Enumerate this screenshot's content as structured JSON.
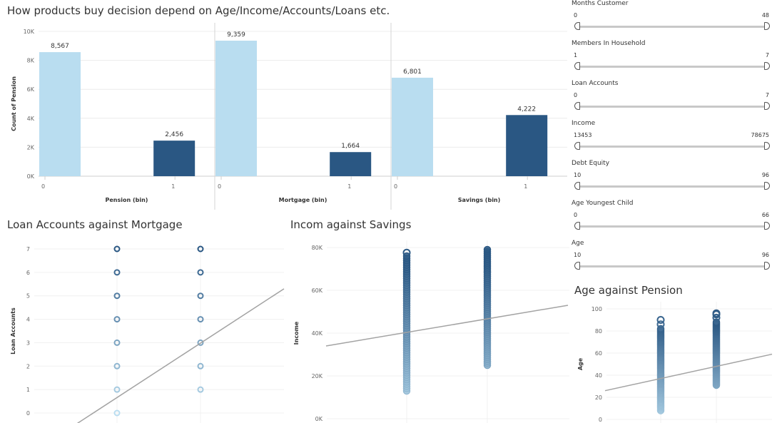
{
  "titles": {
    "main": "How products buy decision depend on Age/Income/Accounts/Loans etc.",
    "loan_mortgage": "Loan Accounts against Mortgage",
    "income_savings": "Incom against Savings",
    "age_pension": "Age against Pension"
  },
  "filters": [
    {
      "label": "Months Customer",
      "min": "0",
      "max": "48"
    },
    {
      "label": "Members In Household",
      "min": "1",
      "max": "7"
    },
    {
      "label": "Loan Accounts",
      "min": "0",
      "max": "7"
    },
    {
      "label": "Income",
      "min": "13453",
      "max": "78675"
    },
    {
      "label": "Debt Equity",
      "min": "10",
      "max": "96"
    },
    {
      "label": "Age Youngest Child",
      "min": "0",
      "max": "66"
    },
    {
      "label": "Age",
      "min": "10",
      "max": "96"
    }
  ],
  "colors": {
    "light": "#b9ddf0",
    "dark": "#2a5783",
    "trend": "#a3a3a3"
  },
  "chart_data": [
    {
      "type": "bar",
      "ylabel": "Count of Pension",
      "ylim": [
        0,
        10000
      ],
      "yticks": [
        "0K",
        "2K",
        "4K",
        "6K",
        "8K",
        "10K"
      ],
      "panels": [
        {
          "xlabel": "Pension (bin)",
          "categories": [
            "0",
            "1"
          ],
          "values": [
            8567,
            2456
          ],
          "labels": [
            "8,567",
            "2,456"
          ]
        },
        {
          "xlabel": "Mortgage (bin)",
          "categories": [
            "0",
            "1"
          ],
          "values": [
            9359,
            1664
          ],
          "labels": [
            "9,359",
            "1,664"
          ]
        },
        {
          "xlabel": "Savings (bin)",
          "categories": [
            "0",
            "1"
          ],
          "values": [
            6801,
            4222
          ],
          "labels": [
            "6,801",
            "4,222"
          ]
        }
      ]
    },
    {
      "type": "scatter",
      "ylabel": "Loan Accounts",
      "ylim": [
        0,
        7
      ],
      "yticks": [
        "0",
        "1",
        "2",
        "3",
        "4",
        "5",
        "6",
        "7"
      ],
      "x": [
        0,
        1
      ],
      "points": {
        "0": [
          0,
          1,
          2,
          3,
          4,
          5,
          6,
          7
        ],
        "1": [
          1,
          2,
          3,
          4,
          5,
          6,
          7
        ]
      },
      "trend": [
        [
          -0.5,
          -0.5
        ],
        [
          2.0,
          5.3
        ]
      ]
    },
    {
      "type": "scatter",
      "ylabel": "Income",
      "ylim": [
        0,
        80000
      ],
      "yticks": [
        "0K",
        "20K",
        "40K",
        "60K",
        "80K"
      ],
      "x": [
        0,
        1
      ],
      "ranges": [
        [
          13000,
          76000
        ],
        [
          25000,
          79000
        ]
      ],
      "outliers": [
        [
          0,
          77600
        ]
      ],
      "trend": [
        [
          -1.0,
          34000
        ],
        [
          2.0,
          53000
        ]
      ]
    },
    {
      "type": "scatter",
      "ylabel": "Age",
      "ylim": [
        0,
        100
      ],
      "yticks": [
        "0",
        "20",
        "40",
        "60",
        "80",
        "100"
      ],
      "x": [
        0,
        1
      ],
      "ranges": [
        [
          8,
          82
        ],
        [
          31,
          88
        ]
      ],
      "outliers": [
        [
          0,
          86
        ],
        [
          0,
          90
        ],
        [
          1,
          92
        ],
        [
          1,
          95
        ],
        [
          1,
          96
        ]
      ],
      "trend": [
        [
          -1.0,
          26
        ],
        [
          2.0,
          59
        ]
      ]
    }
  ]
}
